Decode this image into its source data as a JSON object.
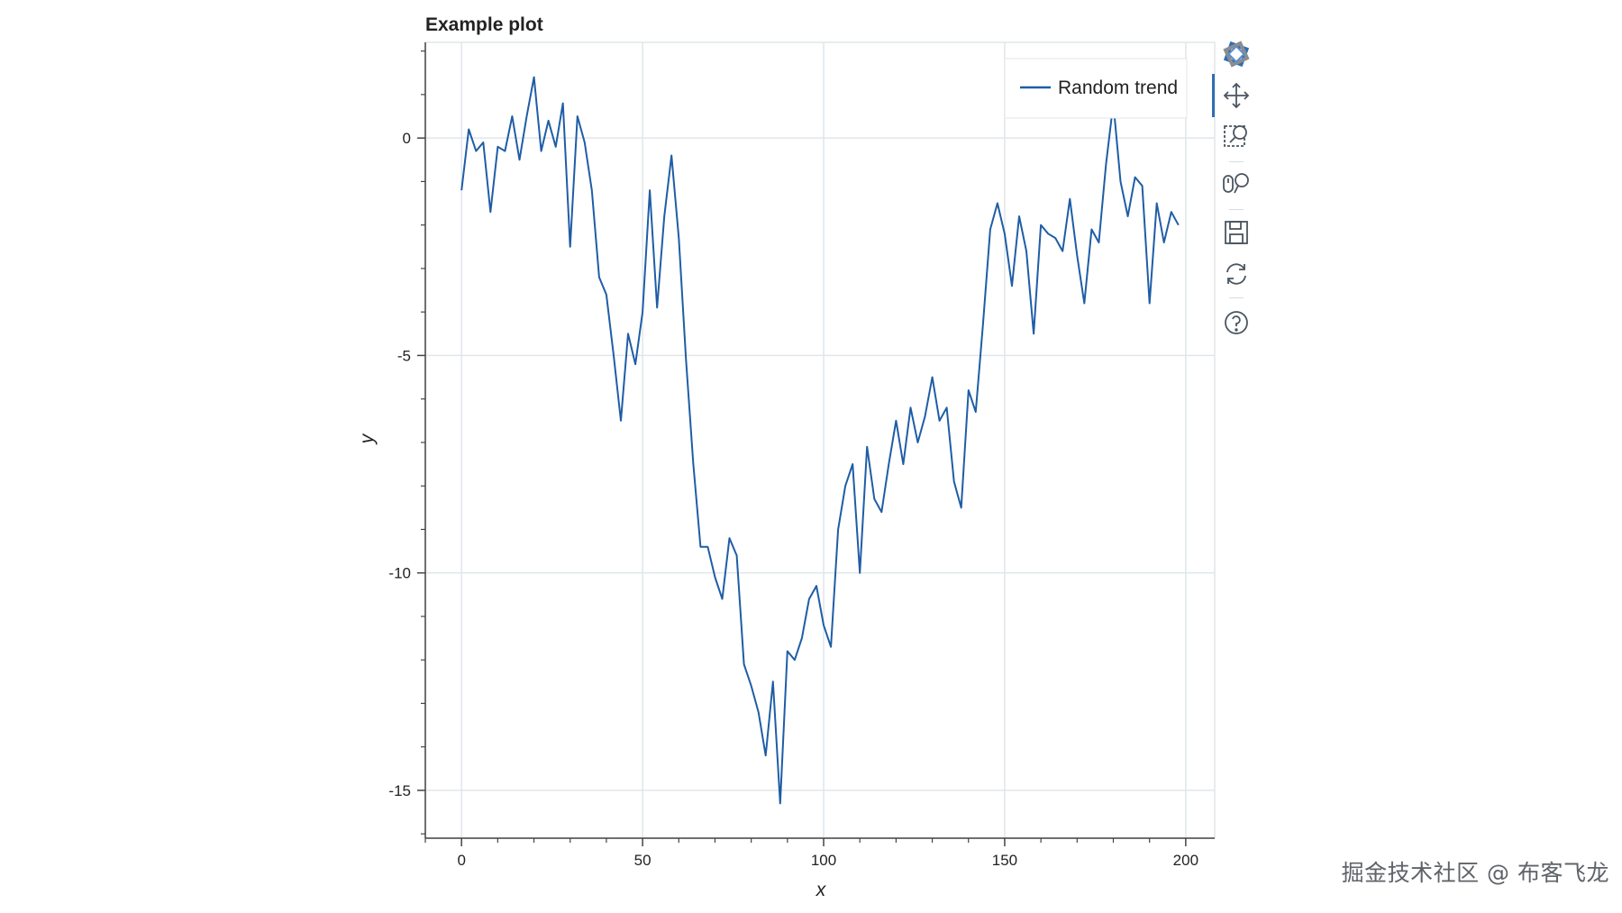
{
  "toolbar": {
    "items": [
      {
        "name": "bokeh-logo",
        "label": "Bokeh"
      },
      {
        "name": "pan-tool",
        "label": "Pan"
      },
      {
        "name": "box-zoom-tool",
        "label": "Box Zoom"
      },
      {
        "name": "wheel-zoom-tool",
        "label": "Wheel Zoom"
      },
      {
        "name": "save-tool",
        "label": "Save"
      },
      {
        "name": "reset-tool",
        "label": "Reset"
      },
      {
        "name": "help-tool",
        "label": "Help"
      }
    ],
    "active": "pan-tool",
    "accent": "#2f6fb3"
  },
  "watermark": {
    "text": "掘金技术社区 @ 布客飞龙"
  },
  "colors": {
    "line": "#1f5da6",
    "grid": "#e0e6ea",
    "axis": "#444444",
    "legend_border": "#e5e5e5"
  },
  "chart_data": {
    "type": "line",
    "title": "Example plot",
    "xlabel": "x",
    "ylabel": "y",
    "xlim": [
      -10,
      208
    ],
    "ylim": [
      -16.1,
      2.2
    ],
    "xticks": [
      0,
      50,
      100,
      150,
      200
    ],
    "yticks": [
      0,
      -5,
      -10,
      -15
    ],
    "ytick_labels": [
      "0",
      "-5",
      "-10",
      "-15"
    ],
    "grid": true,
    "legend": {
      "position": "top-right",
      "entries": [
        "Random trend"
      ]
    },
    "series": [
      {
        "name": "Random trend",
        "x": [
          0,
          2,
          4,
          6,
          8,
          10,
          12,
          14,
          16,
          18,
          20,
          22,
          24,
          26,
          28,
          30,
          32,
          34,
          36,
          38,
          40,
          42,
          44,
          46,
          48,
          50,
          52,
          54,
          56,
          58,
          60,
          62,
          64,
          66,
          68,
          70,
          72,
          74,
          76,
          78,
          80,
          82,
          84,
          86,
          88,
          90,
          92,
          94,
          96,
          98,
          100,
          102,
          104,
          106,
          108,
          110,
          112,
          114,
          116,
          118,
          120,
          122,
          124,
          126,
          128,
          130,
          132,
          134,
          136,
          138,
          140,
          142,
          144,
          146,
          148,
          150,
          152,
          154,
          156,
          158,
          160,
          162,
          164,
          166,
          168,
          170,
          172,
          174,
          176,
          178,
          180,
          182,
          184,
          186,
          188,
          190,
          192,
          194,
          196,
          198
        ],
        "values": [
          -1.2,
          0.2,
          -0.3,
          -0.1,
          -1.7,
          -0.2,
          -0.3,
          0.5,
          -0.5,
          0.5,
          1.4,
          -0.3,
          0.4,
          -0.2,
          0.8,
          -2.5,
          0.5,
          -0.1,
          -1.2,
          -3.2,
          -3.6,
          -5.0,
          -6.5,
          -4.5,
          -5.2,
          -4.0,
          -1.2,
          -3.9,
          -1.8,
          -0.4,
          -2.3,
          -5.1,
          -7.5,
          -9.4,
          -9.4,
          -10.1,
          -10.6,
          -9.2,
          -9.6,
          -12.1,
          -12.6,
          -13.2,
          -14.2,
          -12.5,
          -15.3,
          -11.8,
          -12.0,
          -11.5,
          -10.6,
          -10.3,
          -11.2,
          -11.7,
          -9.0,
          -8.0,
          -7.5,
          -10.0,
          -7.1,
          -8.3,
          -8.6,
          -7.5,
          -6.5,
          -7.5,
          -6.2,
          -7.0,
          -6.4,
          -5.5,
          -6.5,
          -6.2,
          -7.9,
          -8.5,
          -5.8,
          -6.3,
          -4.3,
          -2.1,
          -1.5,
          -2.2,
          -3.4,
          -1.8,
          -2.6,
          -4.5,
          -2.0,
          -2.2,
          -2.3,
          -2.6,
          -1.4,
          -2.7,
          -3.8,
          -2.1,
          -2.4,
          -0.6,
          0.8,
          -1.0,
          -1.8,
          -0.9,
          -1.1,
          -3.8,
          -1.5,
          -2.4,
          -1.7,
          -2.0
        ]
      }
    ]
  }
}
